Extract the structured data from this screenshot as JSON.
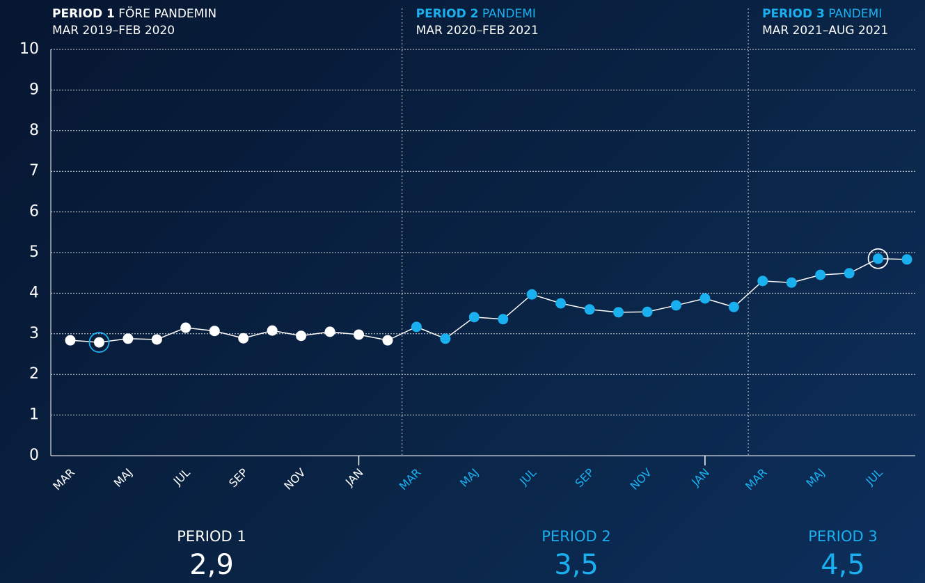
{
  "chart_data": {
    "type": "line",
    "ylim": [
      0,
      10
    ],
    "yticks": [
      0,
      1,
      2,
      3,
      4,
      5,
      6,
      7,
      8,
      9,
      10
    ],
    "grid": true,
    "line_color": "#ffffff",
    "periods": [
      {
        "title": "PERIOD 1",
        "subtitle": "FÖRE PANDEMIN",
        "dates": "MAR 2019–FEB 2020",
        "color": "#ffffff",
        "title_color": "#ffffff",
        "categories": [
          "MAR",
          null,
          "MAJ",
          null,
          "JUL",
          null,
          "SEP",
          null,
          "NOV",
          null,
          "JAN",
          null
        ],
        "values": [
          2.84,
          2.79,
          2.88,
          2.86,
          3.15,
          3.07,
          2.89,
          3.08,
          2.95,
          3.05,
          2.98,
          2.84
        ],
        "highlight_index": 1,
        "highlight_color": "#1ab0f0",
        "summary_label": "PERIOD 1",
        "summary_value": 2.9,
        "summary_value_label": "2,9"
      },
      {
        "title": "PERIOD 2",
        "subtitle": "PANDEMI",
        "dates": "MAR 2020–FEB 2021",
        "color": "#1ab0f0",
        "title_color": "#1ab0f0",
        "categories": [
          "MAR",
          null,
          "MAJ",
          null,
          "JUL",
          null,
          "SEP",
          null,
          "NOV",
          null,
          "JAN",
          null
        ],
        "values": [
          3.17,
          2.88,
          3.41,
          3.36,
          3.97,
          3.75,
          3.6,
          3.53,
          3.54,
          3.7,
          3.87,
          3.66
        ],
        "summary_label": "PERIOD 2",
        "summary_value": 3.5,
        "summary_value_label": "3,5"
      },
      {
        "title": "PERIOD 3",
        "subtitle": "PANDEMI",
        "dates": "MAR 2021–AUG 2021",
        "color": "#1ab0f0",
        "title_color": "#1ab0f0",
        "categories": [
          "MAR",
          null,
          "MAJ",
          null,
          "JUL",
          null
        ],
        "values": [
          4.3,
          4.26,
          4.45,
          4.49,
          4.85,
          4.83
        ],
        "highlight_index": 4,
        "highlight_color": "#ffffff",
        "summary_label": "PERIOD 3",
        "summary_value": 4.5,
        "summary_value_label": "4,5"
      }
    ]
  }
}
